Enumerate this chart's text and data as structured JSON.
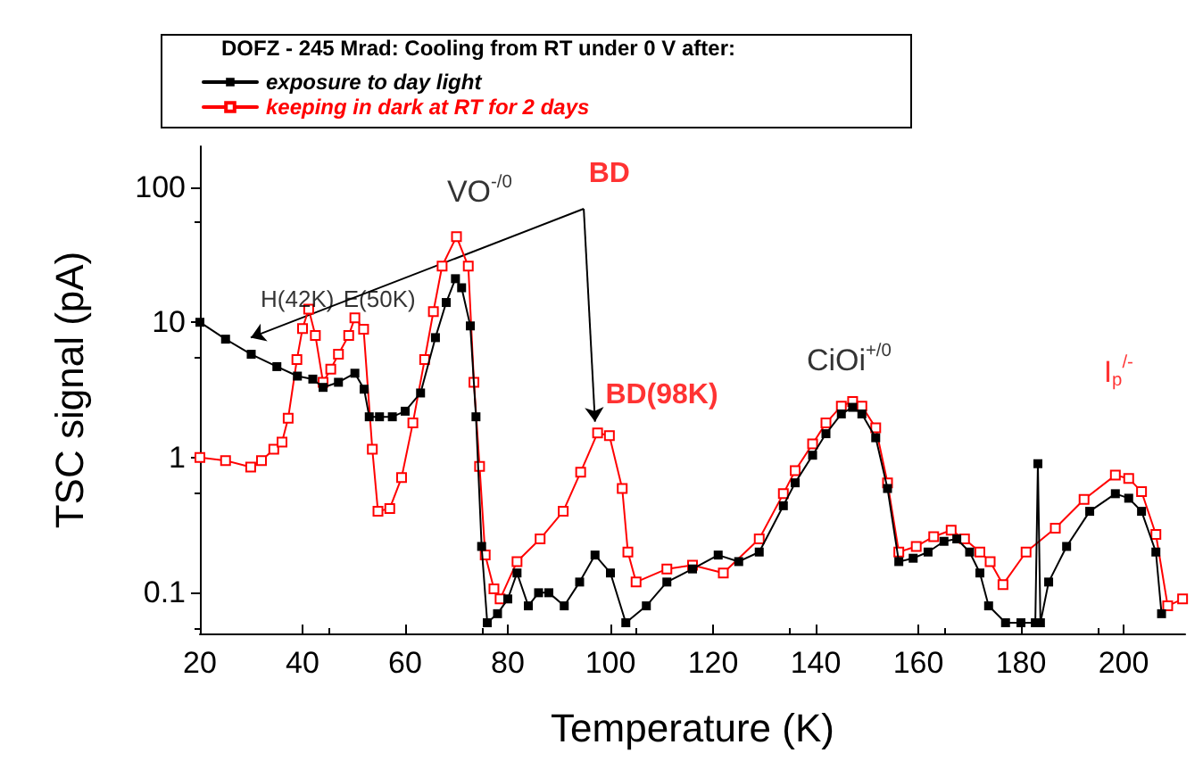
{
  "chart_data": {
    "type": "line",
    "xlabel": "Temperature (K)",
    "ylabel": "TSC signal (pA)",
    "legend_title": "DOFZ - 245 Mrad: Cooling from RT under 0 V after:",
    "legend": "top left",
    "log": "y",
    "grid": false,
    "marker": "square",
    "line_style": "solid",
    "xlim": [
      20,
      212
    ],
    "xticks": [
      20,
      40,
      60,
      80,
      100,
      120,
      140,
      160,
      180,
      200
    ],
    "ylim": [
      0.05,
      200
    ],
    "yticks": [
      0.1,
      1,
      10,
      100
    ],
    "series": [
      {
        "name": "exposure to day light",
        "color": "#000000",
        "x": [
          20,
          25,
          30,
          35,
          39,
          42,
          44,
          47,
          50.2,
          52,
          53,
          55,
          57.5,
          60,
          63,
          65.9,
          68,
          69.8,
          71,
          72.7,
          73.8,
          74.9,
          76,
          78,
          80,
          81.8,
          84,
          86,
          88,
          91,
          94,
          97,
          100,
          103,
          107,
          111,
          116,
          121,
          125,
          129,
          133.7,
          136,
          139.4,
          142,
          145,
          147.2,
          149,
          151.7,
          154,
          156.2,
          159,
          161.9,
          165,
          167.5,
          170,
          172,
          173.7,
          177,
          180,
          182.8,
          183.3,
          183.8,
          185.4,
          188.9,
          193.4,
          198.4,
          201,
          203.5,
          206.3,
          207.4
        ],
        "values": [
          10,
          7.5,
          5.8,
          4.7,
          4.0,
          3.8,
          3.3,
          3.6,
          4.2,
          3.2,
          2.0,
          2.0,
          2.0,
          2.2,
          3.0,
          7.7,
          14,
          21,
          18,
          9.4,
          2.0,
          0.22,
          0.06,
          0.07,
          0.09,
          0.14,
          0.08,
          0.1,
          0.1,
          0.08,
          0.12,
          0.19,
          0.14,
          0.06,
          0.08,
          0.12,
          0.15,
          0.19,
          0.17,
          0.2,
          0.44,
          0.65,
          1.04,
          1.5,
          2.1,
          2.35,
          2.1,
          1.4,
          0.59,
          0.17,
          0.18,
          0.2,
          0.24,
          0.25,
          0.2,
          0.14,
          0.08,
          0.06,
          0.06,
          0.06,
          0.9,
          0.06,
          0.12,
          0.22,
          0.4,
          0.54,
          0.5,
          0.4,
          0.2,
          0.07
        ]
      },
      {
        "name": "keeping in dark at RT for 2 days",
        "color": "#ff0000",
        "x": [
          20,
          25,
          29.9,
          32,
          34.4,
          36,
          37.2,
          38.9,
          40,
          41.2,
          42.5,
          44,
          45.5,
          47,
          49,
          50.2,
          51.9,
          53.6,
          54.7,
          57,
          59.3,
          61.5,
          63.8,
          65.5,
          67.2,
          70,
          72.3,
          73.4,
          74.5,
          75.6,
          77.3,
          78.5,
          81.8,
          86.3,
          90.8,
          94.2,
          97.5,
          99.8,
          102.3,
          103.4,
          105,
          111,
          116,
          122,
          129,
          133.7,
          136,
          139.4,
          142,
          145,
          147.2,
          149,
          151.7,
          154,
          156.2,
          159.6,
          163,
          166.4,
          169,
          172,
          174,
          176.5,
          181,
          186.7,
          192.3,
          198.4,
          201,
          203.5,
          206.3,
          208.6,
          211.5
        ],
        "values": [
          1.0,
          0.95,
          0.85,
          0.95,
          1.15,
          1.3,
          1.95,
          5.3,
          9,
          12.5,
          8,
          3.6,
          4.5,
          5.8,
          8,
          10.8,
          8.9,
          1.15,
          0.4,
          0.42,
          0.71,
          1.8,
          5.3,
          12,
          26,
          43,
          26,
          3.6,
          0.86,
          0.19,
          0.107,
          0.09,
          0.17,
          0.25,
          0.4,
          0.78,
          1.52,
          1.45,
          0.59,
          0.2,
          0.12,
          0.15,
          0.16,
          0.14,
          0.25,
          0.54,
          0.8,
          1.26,
          1.8,
          2.4,
          2.6,
          2.4,
          1.66,
          0.65,
          0.2,
          0.22,
          0.26,
          0.29,
          0.25,
          0.2,
          0.17,
          0.115,
          0.2,
          0.3,
          0.49,
          0.74,
          0.7,
          0.56,
          0.27,
          0.08,
          0.09
        ]
      }
    ],
    "annotations": [
      "VO$^{-/0}$",
      {
        "text": "BD",
        "x": 97,
        "y": 1.84
      },
      "H(42K)",
      "E(50K)",
      "BD(98K)",
      "CiOi$^{+/0}$",
      "I$_{p}$$^{/-}$"
    ]
  }
}
